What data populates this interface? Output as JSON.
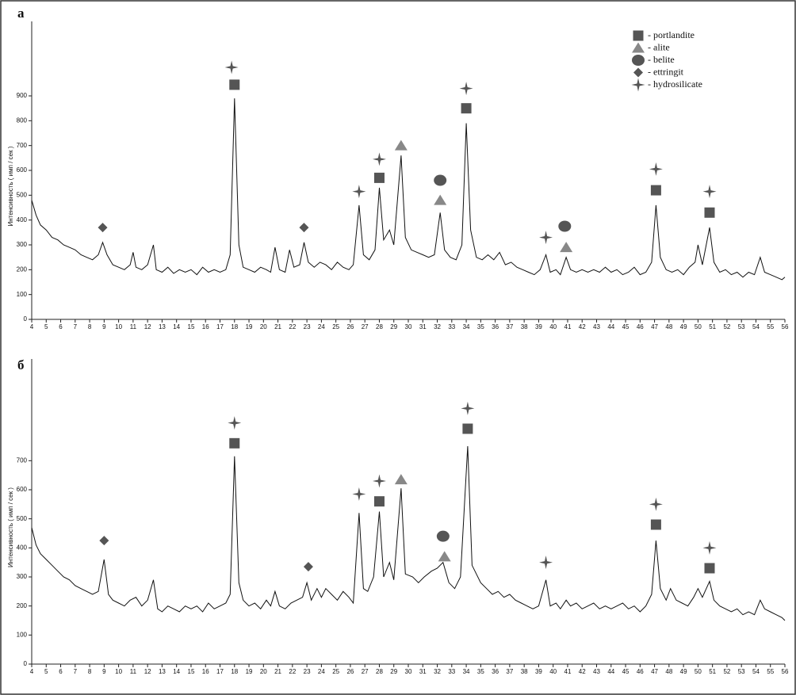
{
  "chart_data": [
    {
      "type": "line",
      "label": "а",
      "ylabel": "Интенсивность ( имп / сек )",
      "color": "#111",
      "xlim": [
        4,
        56
      ],
      "ylim": [
        0,
        1200
      ],
      "xticks": [
        4,
        5,
        6,
        7,
        8,
        9,
        10,
        11,
        12,
        13,
        14,
        15,
        16,
        17,
        18,
        19,
        20,
        21,
        22,
        23,
        24,
        25,
        26,
        27,
        28,
        29,
        30,
        31,
        32,
        33,
        34,
        35,
        36,
        37,
        38,
        39,
        40,
        41,
        42,
        43,
        44,
        45,
        46,
        47,
        48,
        49,
        50,
        51,
        52,
        53,
        54,
        55,
        56
      ],
      "yticks": [
        0,
        100,
        200,
        300,
        400,
        500,
        600,
        700,
        800,
        900
      ],
      "legend": "upper right",
      "x": [
        4,
        4.3,
        4.6,
        5,
        5.4,
        5.8,
        6.2,
        6.6,
        7,
        7.4,
        7.8,
        8.2,
        8.6,
        8.9,
        9.2,
        9.6,
        10,
        10.4,
        10.8,
        11,
        11.2,
        11.6,
        12,
        12.4,
        12.6,
        13,
        13.4,
        13.8,
        14.2,
        14.6,
        15,
        15.4,
        15.8,
        16.2,
        16.6,
        17,
        17.4,
        17.7,
        18,
        18.3,
        18.6,
        19,
        19.4,
        19.8,
        20.2,
        20.5,
        20.8,
        21.1,
        21.5,
        21.8,
        22.1,
        22.5,
        22.8,
        23.1,
        23.5,
        23.9,
        24.3,
        24.7,
        25.1,
        25.5,
        25.9,
        26.2,
        26.6,
        26.9,
        27.3,
        27.7,
        28,
        28.3,
        28.7,
        29,
        29.5,
        29.8,
        30.2,
        30.6,
        31,
        31.4,
        31.8,
        32.2,
        32.5,
        32.9,
        33.3,
        33.7,
        34,
        34.3,
        34.7,
        35.1,
        35.5,
        35.9,
        36.3,
        36.7,
        37.1,
        37.5,
        37.9,
        38.3,
        38.7,
        39.1,
        39.5,
        39.8,
        40.2,
        40.5,
        40.9,
        41.2,
        41.6,
        42,
        42.4,
        42.8,
        43.2,
        43.6,
        44,
        44.4,
        44.8,
        45.2,
        45.6,
        46,
        46.4,
        46.8,
        47.1,
        47.4,
        47.8,
        48.2,
        48.6,
        49,
        49.4,
        49.8,
        50,
        50.3,
        50.8,
        51.1,
        51.5,
        51.9,
        52.3,
        52.7,
        53.1,
        53.5,
        53.9,
        54.3,
        54.6,
        55,
        55.4,
        55.8,
        56
      ],
      "values": [
        480,
        420,
        380,
        360,
        330,
        320,
        300,
        290,
        280,
        260,
        250,
        240,
        260,
        310,
        260,
        220,
        210,
        200,
        220,
        270,
        210,
        200,
        220,
        300,
        200,
        190,
        210,
        185,
        200,
        190,
        200,
        180,
        210,
        190,
        200,
        190,
        200,
        260,
        890,
        300,
        210,
        200,
        190,
        210,
        200,
        190,
        290,
        200,
        190,
        280,
        210,
        220,
        310,
        230,
        210,
        230,
        220,
        200,
        230,
        210,
        200,
        220,
        460,
        260,
        240,
        280,
        530,
        320,
        360,
        300,
        660,
        330,
        280,
        270,
        260,
        250,
        260,
        430,
        280,
        250,
        240,
        300,
        790,
        360,
        250,
        240,
        260,
        240,
        270,
        220,
        230,
        210,
        200,
        190,
        180,
        200,
        260,
        190,
        200,
        180,
        250,
        200,
        190,
        200,
        190,
        200,
        190,
        210,
        190,
        200,
        180,
        190,
        210,
        180,
        190,
        230,
        460,
        250,
        200,
        190,
        200,
        180,
        210,
        230,
        300,
        220,
        370,
        230,
        190,
        200,
        180,
        190,
        170,
        190,
        180,
        250,
        190,
        180,
        170,
        160,
        170
      ],
      "markers": [
        {
          "name": "- portlandite",
          "shape": "square",
          "color": "#555",
          "x": [
            18,
            28,
            34,
            47.1,
            50.8
          ],
          "y": [
            945,
            570,
            850,
            520,
            430
          ]
        },
        {
          "name": "- alite",
          "shape": "triangle",
          "color": "#888",
          "x": [
            29.5,
            32.2,
            40.9
          ],
          "y": [
            700,
            480,
            290
          ]
        },
        {
          "name": "- belite",
          "shape": "circle",
          "color": "#555",
          "x": [
            32.2,
            40.8
          ],
          "y": [
            560,
            375
          ]
        },
        {
          "name": "- ettringit",
          "shape": "diamond",
          "color": "#555",
          "x": [
            8.9,
            22.8
          ],
          "y": [
            370,
            370
          ]
        },
        {
          "name": "- hydrosilicate",
          "shape": "star",
          "color": "#555",
          "x": [
            17.8,
            26.6,
            28,
            34,
            39.5,
            47.1,
            50.8
          ],
          "y": [
            1015,
            515,
            645,
            930,
            330,
            605,
            515
          ]
        }
      ]
    },
    {
      "type": "line",
      "label": "б",
      "ylabel": "Интенсивность ( имп / сек )",
      "color": "#111",
      "xlim": [
        4,
        56
      ],
      "ylim": [
        0,
        1050
      ],
      "xticks": [
        4,
        5,
        6,
        7,
        8,
        9,
        10,
        11,
        12,
        13,
        14,
        15,
        16,
        17,
        18,
        19,
        20,
        21,
        22,
        23,
        24,
        25,
        26,
        27,
        28,
        29,
        30,
        31,
        32,
        33,
        34,
        35,
        36,
        37,
        38,
        39,
        40,
        41,
        42,
        43,
        44,
        45,
        46,
        47,
        48,
        49,
        50,
        51,
        52,
        53,
        54,
        55,
        56
      ],
      "yticks": [
        0,
        100,
        200,
        300,
        400,
        500,
        600,
        700
      ],
      "x": [
        4,
        4.3,
        4.6,
        5,
        5.4,
        5.8,
        6.2,
        6.6,
        7,
        7.4,
        7.8,
        8.2,
        8.6,
        9,
        9.3,
        9.6,
        10,
        10.4,
        10.8,
        11.2,
        11.6,
        12,
        12.4,
        12.7,
        13,
        13.4,
        13.8,
        14.2,
        14.6,
        15,
        15.4,
        15.8,
        16.2,
        16.6,
        17,
        17.4,
        17.7,
        18,
        18.3,
        18.6,
        19,
        19.4,
        19.8,
        20.2,
        20.5,
        20.8,
        21.1,
        21.5,
        21.9,
        22.3,
        22.7,
        23,
        23.3,
        23.7,
        24,
        24.3,
        24.7,
        25.1,
        25.5,
        25.9,
        26.2,
        26.6,
        26.9,
        27.2,
        27.6,
        28,
        28.3,
        28.7,
        29,
        29.5,
        29.8,
        30.3,
        30.7,
        31.1,
        31.6,
        32,
        32.4,
        32.8,
        33.2,
        33.6,
        34.1,
        34.4,
        35,
        35.4,
        35.8,
        36.2,
        36.6,
        37,
        37.4,
        37.8,
        38.2,
        38.6,
        39,
        39.5,
        39.8,
        40.2,
        40.5,
        40.9,
        41.2,
        41.6,
        42,
        42.4,
        42.8,
        43.2,
        43.6,
        44,
        44.4,
        44.8,
        45.2,
        45.6,
        46,
        46.4,
        46.8,
        47.1,
        47.4,
        47.8,
        48.1,
        48.5,
        48.9,
        49.3,
        49.7,
        50,
        50.3,
        50.8,
        51.1,
        51.5,
        51.9,
        52.3,
        52.7,
        53.1,
        53.5,
        53.9,
        54.3,
        54.6,
        55,
        55.4,
        55.8,
        56
      ],
      "values": [
        470,
        410,
        380,
        360,
        340,
        320,
        300,
        290,
        270,
        260,
        250,
        240,
        250,
        360,
        240,
        220,
        210,
        200,
        220,
        230,
        200,
        220,
        290,
        190,
        180,
        200,
        190,
        180,
        200,
        190,
        200,
        180,
        210,
        190,
        200,
        210,
        240,
        715,
        280,
        220,
        200,
        210,
        190,
        220,
        200,
        250,
        200,
        190,
        210,
        220,
        230,
        280,
        220,
        260,
        230,
        260,
        240,
        220,
        250,
        230,
        210,
        520,
        260,
        250,
        300,
        525,
        300,
        350,
        290,
        605,
        310,
        300,
        280,
        300,
        320,
        330,
        350,
        280,
        260,
        300,
        750,
        340,
        280,
        260,
        240,
        250,
        230,
        240,
        220,
        210,
        200,
        190,
        200,
        290,
        200,
        210,
        190,
        220,
        200,
        210,
        190,
        200,
        210,
        190,
        200,
        190,
        200,
        210,
        190,
        200,
        180,
        200,
        240,
        425,
        260,
        220,
        260,
        220,
        210,
        200,
        230,
        260,
        230,
        285,
        220,
        200,
        190,
        180,
        190,
        170,
        180,
        170,
        220,
        190,
        180,
        170,
        160,
        150
      ],
      "markers": [
        {
          "shape": "square",
          "color": "#555",
          "x": [
            18,
            28,
            34.1,
            47.1,
            50.8
          ],
          "y": [
            760,
            560,
            810,
            480,
            330
          ]
        },
        {
          "shape": "triangle",
          "color": "#888",
          "x": [
            29.5,
            32.5
          ],
          "y": [
            635,
            370
          ]
        },
        {
          "shape": "circle",
          "color": "#555",
          "x": [
            32.4
          ],
          "y": [
            440
          ]
        },
        {
          "shape": "diamond",
          "color": "#555",
          "x": [
            9,
            23.1
          ],
          "y": [
            425,
            335
          ]
        },
        {
          "shape": "star",
          "color": "#555",
          "x": [
            18,
            26.6,
            28,
            34.1,
            39.5,
            47.1,
            50.8
          ],
          "y": [
            830,
            585,
            630,
            880,
            350,
            550,
            400
          ]
        }
      ]
    }
  ]
}
